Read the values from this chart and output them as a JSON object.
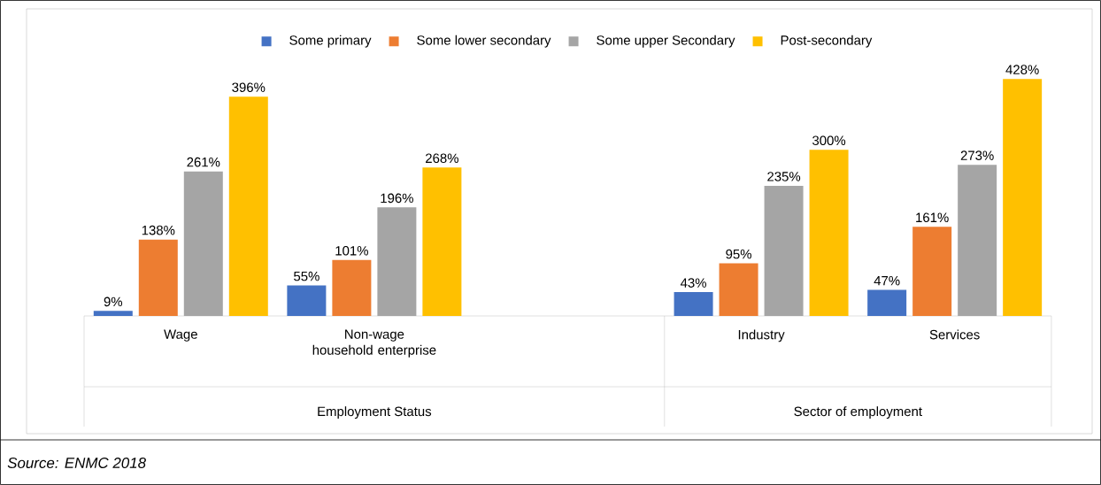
{
  "chart_data": {
    "type": "bar",
    "categories": [
      "Wage",
      "Non-wage household enterprise",
      null,
      "Industry",
      "Services"
    ],
    "series": [
      {
        "name": "Some primary",
        "color": "#4472c4",
        "values": [
          9,
          55,
          null,
          43,
          47
        ],
        "value_labels": [
          "9%",
          "55%",
          null,
          "43%",
          "47%"
        ]
      },
      {
        "name": "Some lower secondary",
        "color": "#ed7d31",
        "values": [
          138,
          101,
          null,
          95,
          161
        ],
        "value_labels": [
          "138%",
          "101%",
          null,
          "95%",
          "161%"
        ]
      },
      {
        "name": "Some upper Secondary",
        "color": "#a5a5a5",
        "values": [
          261,
          196,
          null,
          235,
          273
        ],
        "value_labels": [
          "261%",
          "196%",
          null,
          "235%",
          "273%"
        ]
      },
      {
        "name": "Post-secondary",
        "color": "#ffc000",
        "values": [
          396,
          268,
          null,
          300,
          428
        ],
        "value_labels": [
          "396%",
          "268%",
          null,
          "300%",
          "428%"
        ]
      }
    ],
    "legend": "top",
    "annotations": [
      "Employment Status",
      "Sector of employment",
      "Source: ENMC 2018"
    ]
  }
}
